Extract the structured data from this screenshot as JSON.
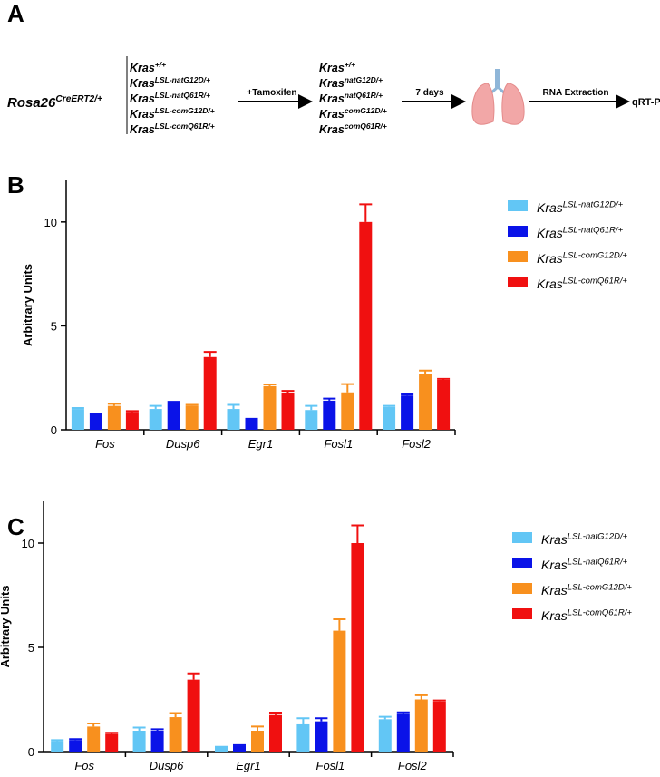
{
  "diagram": {
    "panel_label": "A",
    "start": {
      "base": "Rosa26",
      "sup": "CreERT2/+"
    },
    "before": [
      {
        "base": "Kras",
        "sup": "+/+"
      },
      {
        "base": "Kras",
        "sup": "LSL-natG12D/+"
      },
      {
        "base": "Kras",
        "sup": "LSL-natQ61R/+"
      },
      {
        "base": "Kras",
        "sup": "LSL-comG12D/+"
      },
      {
        "base": "Kras",
        "sup": "LSL-comQ61R/+"
      }
    ],
    "step1": "+Tamoxifen",
    "after": [
      {
        "base": "Kras",
        "sup": "+/+"
      },
      {
        "base": "Kras",
        "sup": "natG12D/+"
      },
      {
        "base": "Kras",
        "sup": "natQ61R/+"
      },
      {
        "base": "Kras",
        "sup": "comG12D/+"
      },
      {
        "base": "Kras",
        "sup": "comQ61R/+"
      }
    ],
    "step2": "7 days",
    "step3": "RNA Extraction",
    "end": "qRT-PCR"
  },
  "chart_data": [
    {
      "type": "bar",
      "panel_label": "B",
      "ylabel": "Arbitrary Units",
      "categories": [
        "Fos",
        "Dusp6",
        "Egr1",
        "Fosl1",
        "Fosl2"
      ],
      "ylim": [
        0,
        12
      ],
      "yticks": [
        0,
        5,
        10
      ],
      "series": [
        {
          "name": "Kras",
          "name_sup": "LSL-natG12D/+",
          "color": "#62c6f5",
          "values": [
            1.0,
            1.0,
            1.0,
            0.95,
            1.1
          ],
          "errors": [
            0.05,
            0.15,
            0.2,
            0.2,
            0.05
          ]
        },
        {
          "name": "Kras",
          "name_sup": "LSL-natQ61R/+",
          "color": "#0a13e8",
          "values": [
            0.75,
            1.3,
            0.5,
            1.4,
            1.65
          ],
          "errors": [
            0.03,
            0.05,
            0.03,
            0.1,
            0.05
          ]
        },
        {
          "name": "Kras",
          "name_sup": "LSL-comG12D/+",
          "color": "#f8901e",
          "values": [
            1.15,
            1.15,
            2.1,
            1.8,
            2.7
          ],
          "errors": [
            0.1,
            0.05,
            0.08,
            0.4,
            0.15
          ]
        },
        {
          "name": "Kras",
          "name_sup": "LSL-comQ61R/+",
          "color": "#f01010",
          "values": [
            0.85,
            3.5,
            1.75,
            10.0,
            2.4
          ],
          "errors": [
            0.05,
            0.25,
            0.12,
            0.85,
            0.05
          ]
        }
      ]
    },
    {
      "type": "bar",
      "panel_label": "C",
      "ylabel": "Arbitrary Units",
      "categories": [
        "Fos",
        "Dusp6",
        "Egr1",
        "Fosl1",
        "Fosl2"
      ],
      "ylim": [
        0,
        12
      ],
      "yticks": [
        0,
        5,
        10
      ],
      "series": [
        {
          "name": "Kras",
          "name_sup": "LSL-natG12D/+",
          "color": "#62c6f5",
          "values": [
            0.5,
            1.0,
            0.2,
            1.35,
            1.55
          ],
          "errors": [
            0.05,
            0.15,
            0.03,
            0.25,
            0.12
          ]
        },
        {
          "name": "Kras",
          "name_sup": "LSL-natQ61R/+",
          "color": "#0a13e8",
          "values": [
            0.55,
            1.0,
            0.28,
            1.45,
            1.8
          ],
          "errors": [
            0.05,
            0.07,
            0.03,
            0.15,
            0.08
          ]
        },
        {
          "name": "Kras",
          "name_sup": "LSL-comG12D/+",
          "color": "#f8901e",
          "values": [
            1.2,
            1.65,
            1.0,
            5.8,
            2.5
          ],
          "errors": [
            0.15,
            0.2,
            0.2,
            0.55,
            0.2
          ]
        },
        {
          "name": "Kras",
          "name_sup": "LSL-comQ61R/+",
          "color": "#f01010",
          "values": [
            0.85,
            3.45,
            1.75,
            10.0,
            2.4
          ],
          "errors": [
            0.05,
            0.3,
            0.12,
            0.85,
            0.05
          ]
        }
      ]
    }
  ]
}
